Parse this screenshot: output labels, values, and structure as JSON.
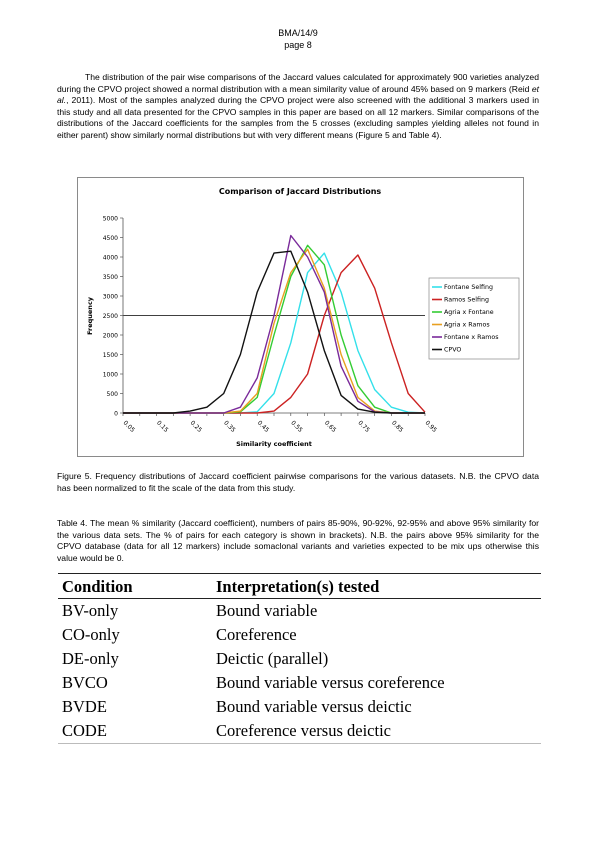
{
  "header": {
    "doc_id": "BMA/14/9",
    "page": "page 8"
  },
  "paragraph1": {
    "before_italic": "The distribution of the pair wise comparisons of the Jaccard values calculated for approximately 900 varieties analyzed during the CPVO project showed a normal distribution with a mean similarity value of around 45% based on 9 markers (Reid ",
    "italic": "et al.",
    "after_italic": ", 2011). Most of the samples analyzed during the CPVO project were also screened with the additional 3 markers used in this study and all data presented for the CPVO samples in this paper are based on all 12 markers. Similar comparisons of the distributions of the Jaccard coefficients for the samples from the 5 crosses (excluding samples yielding alleles not found in either parent) show similarly normal distributions but with very different means (Figure 5 and Table 4)."
  },
  "figure_caption": "Figure 5. Frequency distributions of Jaccard coefficient pairwise comparisons for the various datasets. N.B. the CPVO data has been normalized to fit the scale of the data from this study.",
  "table_caption": "Table 4. The mean % similarity (Jaccard coefficient), numbers of pairs 85-90%, 90-92%, 92-95% and above 95% similarity for the various data sets. The % of pairs for each category is shown in brackets). N.B. the pairs above 95% similarity for the CPVO database (data for all 12 markers) include somaclonal variants and varieties expected to be mix ups otherwise this value would be 0.",
  "table": {
    "headers": [
      "Condition",
      "Interpretation(s) tested"
    ],
    "rows": [
      [
        "BV-only",
        "Bound variable"
      ],
      [
        "CO-only",
        "Coreference"
      ],
      [
        "DE-only",
        "Deictic (parallel)"
      ],
      [
        "BVCO",
        "Bound variable versus coreference"
      ],
      [
        "BVDE",
        "Bound variable versus deictic"
      ],
      [
        "CODE",
        "Coreference versus deictic"
      ]
    ]
  },
  "chart_data": {
    "type": "line",
    "title": "Comparison of Jaccard Distributions",
    "xlabel": "Similarity coefficient",
    "ylabel": "Frequency",
    "x": [
      0.05,
      0.1,
      0.15,
      0.2,
      0.25,
      0.3,
      0.35,
      0.4,
      0.45,
      0.5,
      0.55,
      0.6,
      0.65,
      0.7,
      0.75,
      0.8,
      0.85,
      0.9,
      0.95
    ],
    "x_tick_labels": [
      "0.05",
      "0.15",
      "0.25",
      "0.35",
      "0.45",
      "0.55",
      "0.65",
      "0.75",
      "0.85",
      "0.95"
    ],
    "x_tick_values": [
      0.05,
      0.15,
      0.25,
      0.35,
      0.45,
      0.55,
      0.65,
      0.75,
      0.85,
      0.95
    ],
    "y_ticks": [
      0,
      500,
      1000,
      1500,
      2000,
      2500,
      3000,
      3500,
      4000,
      4500,
      5000
    ],
    "ylim": [
      0,
      5000
    ],
    "grid": "horizontal line at 2500",
    "legend_position": "right",
    "series": [
      {
        "name": "Fontane Selfing",
        "color": "#33e0ea",
        "values": [
          0,
          0,
          0,
          0,
          0,
          0,
          0,
          0,
          30,
          500,
          1800,
          3600,
          4100,
          3100,
          1600,
          600,
          150,
          20,
          0
        ]
      },
      {
        "name": "Ramos Selfing",
        "color": "#cc2222",
        "values": [
          0,
          0,
          0,
          0,
          0,
          0,
          0,
          0,
          0,
          50,
          400,
          1000,
          2500,
          3600,
          4050,
          3200,
          1800,
          500,
          20
        ]
      },
      {
        "name": "Agria x Fontane",
        "color": "#33cc33",
        "values": [
          0,
          0,
          0,
          0,
          0,
          0,
          0,
          30,
          400,
          2000,
          3500,
          4300,
          3800,
          2000,
          700,
          150,
          0,
          0,
          0
        ]
      },
      {
        "name": "Agria x Ramos",
        "color": "#e8a020",
        "values": [
          0,
          0,
          0,
          0,
          0,
          0,
          0,
          50,
          500,
          2300,
          3600,
          4200,
          3200,
          1500,
          400,
          50,
          0,
          0,
          0
        ]
      },
      {
        "name": "Fontane x Ramos",
        "color": "#7a2a9a",
        "values": [
          0,
          0,
          0,
          0,
          0,
          0,
          0,
          150,
          900,
          2500,
          4550,
          4000,
          3100,
          1200,
          300,
          30,
          0,
          0,
          0
        ]
      },
      {
        "name": "CPVO",
        "color": "#111111",
        "values": [
          0,
          0,
          0,
          0,
          50,
          150,
          500,
          1500,
          3100,
          4100,
          4150,
          3100,
          1600,
          450,
          100,
          20,
          0,
          0,
          0
        ]
      }
    ]
  }
}
